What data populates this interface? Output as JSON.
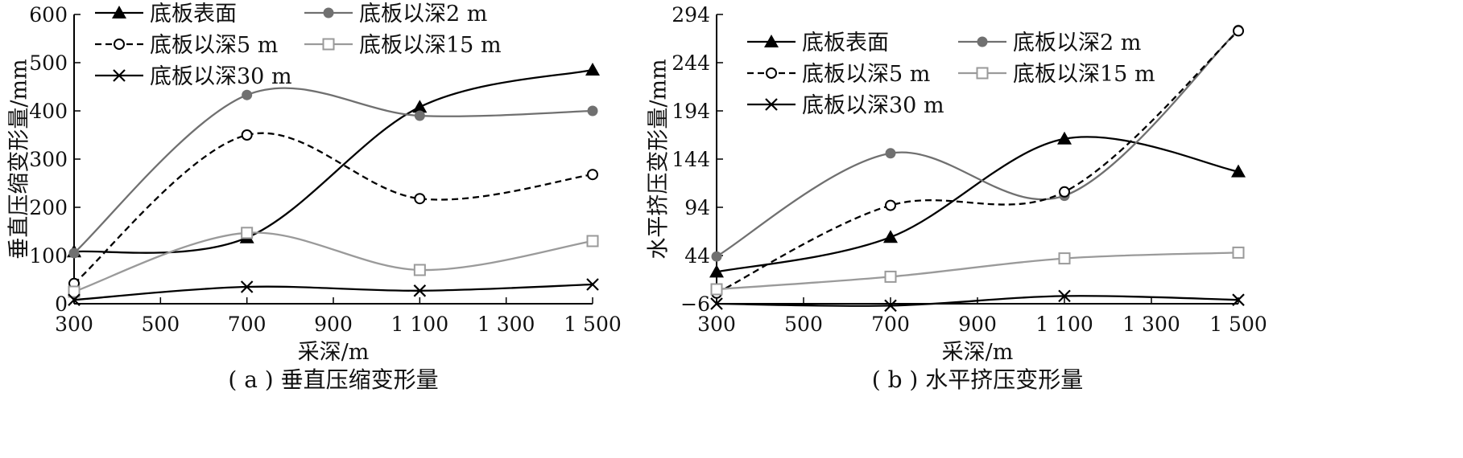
{
  "chart_data": [
    {
      "type": "line",
      "caption": "( a ) 垂直压缩变形量",
      "xlabel": "采深/m",
      "ylabel": "垂直压缩变形量/mm",
      "x": [
        300,
        700,
        1100,
        1500
      ],
      "xticks": [
        300,
        500,
        700,
        900,
        1100,
        1300,
        1500
      ],
      "xtick_labels": [
        "300",
        "500",
        "700",
        "900",
        "1 100",
        "1 300",
        "1 500"
      ],
      "xlim": [
        300,
        1500
      ],
      "ylim": [
        0,
        600
      ],
      "yticks": [
        0,
        100,
        200,
        300,
        400,
        500,
        600
      ],
      "ytick_labels": [
        "0",
        "100",
        "200",
        "300",
        "400",
        "500",
        "600"
      ],
      "legend_placement": "top",
      "series": [
        {
          "name": "底板表面",
          "values": [
            108,
            137,
            408,
            485
          ],
          "color": "#000000",
          "dash": "solid",
          "marker": "triangle"
        },
        {
          "name": "底板以深2 m",
          "values": [
            105,
            433,
            390,
            400
          ],
          "color": "#707070",
          "dash": "solid",
          "marker": "filled-circle"
        },
        {
          "name": "底板以深5 m",
          "values": [
            42,
            350,
            218,
            268
          ],
          "color": "#000000",
          "dash": "dashed",
          "marker": "open-circle"
        },
        {
          "name": "底板以深15 m",
          "values": [
            25,
            147,
            70,
            130
          ],
          "color": "#9a9a9a",
          "dash": "solid",
          "marker": "open-square"
        },
        {
          "name": "底板以深30 m",
          "values": [
            8,
            35,
            27,
            40
          ],
          "color": "#000000",
          "dash": "solid",
          "marker": "cross"
        }
      ]
    },
    {
      "type": "line",
      "caption": "( b ) 水平挤压变形量",
      "xlabel": "采深/m",
      "ylabel": "水平挤压变形量/mm",
      "x": [
        300,
        700,
        1100,
        1500
      ],
      "xticks": [
        300,
        500,
        700,
        900,
        1100,
        1300,
        1500
      ],
      "xtick_labels": [
        "300",
        "500",
        "700",
        "900",
        "1 100",
        "1 300",
        "1 500"
      ],
      "xlim": [
        300,
        1500
      ],
      "ylim": [
        -6,
        294
      ],
      "yticks": [
        -6,
        44,
        94,
        144,
        194,
        244,
        294
      ],
      "ytick_labels": [
        "−6",
        "44",
        "94",
        "144",
        "194",
        "244",
        "294"
      ],
      "legend_placement": "top",
      "series": [
        {
          "name": "底板表面",
          "values": [
            27,
            63,
            165,
            131
          ],
          "color": "#000000",
          "dash": "solid",
          "marker": "triangle"
        },
        {
          "name": "底板以深2 m",
          "values": [
            43,
            150,
            106,
            278
          ],
          "color": "#707070",
          "dash": "solid",
          "marker": "filled-circle"
        },
        {
          "name": "底板以深5 m",
          "values": [
            5,
            96,
            110,
            277
          ],
          "color": "#000000",
          "dash": "dashed",
          "marker": "open-circle"
        },
        {
          "name": "底板以深15 m",
          "values": [
            9,
            22,
            41,
            47
          ],
          "color": "#9a9a9a",
          "dash": "solid",
          "marker": "open-square"
        },
        {
          "name": "底板以深30 m",
          "values": [
            -6,
            -8,
            2,
            -2
          ],
          "color": "#000000",
          "dash": "solid",
          "marker": "cross"
        }
      ]
    }
  ]
}
